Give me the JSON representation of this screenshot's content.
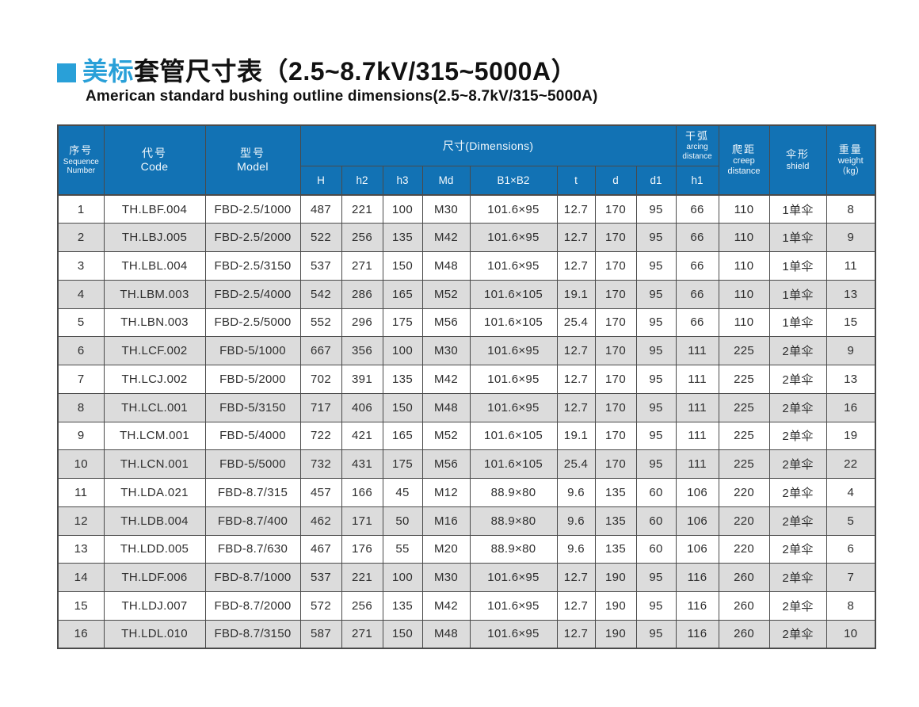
{
  "page": {
    "title_accent": "美标",
    "title_rest": "套管尺寸表（2.5~8.7kV/315~5000A）",
    "subtitle": "American standard bushing outline dimensions(2.5~8.7kV/315~5000A)"
  },
  "colors": {
    "accent_blue": "#29a0d8",
    "header_blue": "#1272b4",
    "row_alt_gray": "#dcdcdc",
    "border_dark": "#4a4a4a"
  },
  "table": {
    "header": {
      "seq_cn": "序号",
      "seq_en_line1": "Sequence",
      "seq_en_line2": "Number",
      "code_cn": "代号",
      "code_en": "Code",
      "model_cn": "型号",
      "model_en": "Model",
      "dimensions": "尺寸(Dimensions)",
      "sub_cols": [
        "H",
        "h2",
        "h3",
        "Md",
        "B1×B2",
        "t",
        "d",
        "d1"
      ],
      "arcing_cn": "干弧",
      "arcing_en_line1": "arcing",
      "arcing_en_line2": "distance",
      "arcing_sub": "h1",
      "creep_cn": "爬距",
      "creep_en_line1": "creep",
      "creep_en_line2": "distance",
      "shield_cn": "伞形",
      "shield_en": "shield",
      "weight_cn": "重量",
      "weight_en": "weight",
      "weight_unit": "（kg）"
    },
    "col_keys": [
      "seq",
      "code",
      "model",
      "h",
      "h2",
      "h3",
      "md",
      "b1xb2",
      "t",
      "d",
      "d1",
      "h1",
      "creep",
      "shield",
      "weight"
    ],
    "rows": [
      [
        "1",
        "TH.LBF.004",
        "FBD-2.5/1000",
        "487",
        "221",
        "100",
        "M30",
        "101.6×95",
        "12.7",
        "170",
        "95",
        "66",
        "110",
        "1单伞",
        "8"
      ],
      [
        "2",
        "TH.LBJ.005",
        "FBD-2.5/2000",
        "522",
        "256",
        "135",
        "M42",
        "101.6×95",
        "12.7",
        "170",
        "95",
        "66",
        "110",
        "1单伞",
        "9"
      ],
      [
        "3",
        "TH.LBL.004",
        "FBD-2.5/3150",
        "537",
        "271",
        "150",
        "M48",
        "101.6×95",
        "12.7",
        "170",
        "95",
        "66",
        "110",
        "1单伞",
        "11"
      ],
      [
        "4",
        "TH.LBM.003",
        "FBD-2.5/4000",
        "542",
        "286",
        "165",
        "M52",
        "101.6×105",
        "19.1",
        "170",
        "95",
        "66",
        "110",
        "1单伞",
        "13"
      ],
      [
        "5",
        "TH.LBN.003",
        "FBD-2.5/5000",
        "552",
        "296",
        "175",
        "M56",
        "101.6×105",
        "25.4",
        "170",
        "95",
        "66",
        "110",
        "1单伞",
        "15"
      ],
      [
        "6",
        "TH.LCF.002",
        "FBD-5/1000",
        "667",
        "356",
        "100",
        "M30",
        "101.6×95",
        "12.7",
        "170",
        "95",
        "111",
        "225",
        "2单伞",
        "9"
      ],
      [
        "7",
        "TH.LCJ.002",
        "FBD-5/2000",
        "702",
        "391",
        "135",
        "M42",
        "101.6×95",
        "12.7",
        "170",
        "95",
        "111",
        "225",
        "2单伞",
        "13"
      ],
      [
        "8",
        "TH.LCL.001",
        "FBD-5/3150",
        "717",
        "406",
        "150",
        "M48",
        "101.6×95",
        "12.7",
        "170",
        "95",
        "111",
        "225",
        "2单伞",
        "16"
      ],
      [
        "9",
        "TH.LCM.001",
        "FBD-5/4000",
        "722",
        "421",
        "165",
        "M52",
        "101.6×105",
        "19.1",
        "170",
        "95",
        "111",
        "225",
        "2单伞",
        "19"
      ],
      [
        "10",
        "TH.LCN.001",
        "FBD-5/5000",
        "732",
        "431",
        "175",
        "M56",
        "101.6×105",
        "25.4",
        "170",
        "95",
        "111",
        "225",
        "2单伞",
        "22"
      ],
      [
        "11",
        "TH.LDA.021",
        "FBD-8.7/315",
        "457",
        "166",
        "45",
        "M12",
        "88.9×80",
        "9.6",
        "135",
        "60",
        "106",
        "220",
        "2单伞",
        "4"
      ],
      [
        "12",
        "TH.LDB.004",
        "FBD-8.7/400",
        "462",
        "171",
        "50",
        "M16",
        "88.9×80",
        "9.6",
        "135",
        "60",
        "106",
        "220",
        "2单伞",
        "5"
      ],
      [
        "13",
        "TH.LDD.005",
        "FBD-8.7/630",
        "467",
        "176",
        "55",
        "M20",
        "88.9×80",
        "9.6",
        "135",
        "60",
        "106",
        "220",
        "2单伞",
        "6"
      ],
      [
        "14",
        "TH.LDF.006",
        "FBD-8.7/1000",
        "537",
        "221",
        "100",
        "M30",
        "101.6×95",
        "12.7",
        "190",
        "95",
        "116",
        "260",
        "2单伞",
        "7"
      ],
      [
        "15",
        "TH.LDJ.007",
        "FBD-8.7/2000",
        "572",
        "256",
        "135",
        "M42",
        "101.6×95",
        "12.7",
        "190",
        "95",
        "116",
        "260",
        "2单伞",
        "8"
      ],
      [
        "16",
        "TH.LDL.010",
        "FBD-8.7/3150",
        "587",
        "271",
        "150",
        "M48",
        "101.6×95",
        "12.7",
        "190",
        "95",
        "116",
        "260",
        "2单伞",
        "10"
      ]
    ]
  }
}
